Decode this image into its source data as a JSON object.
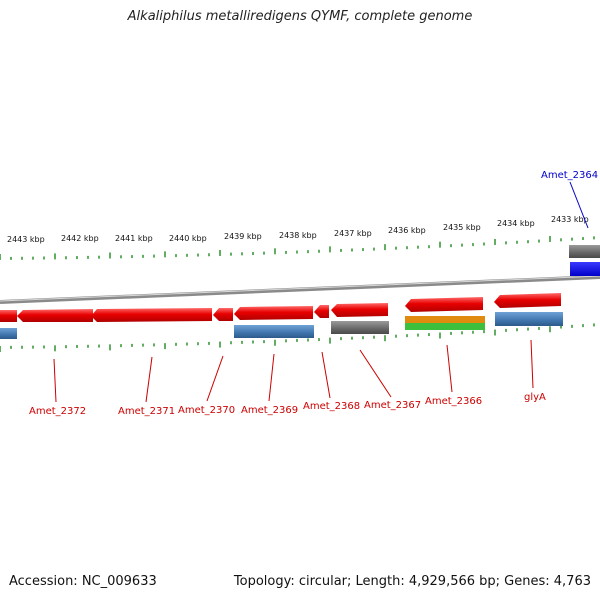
{
  "title": "Alkaliphilus metalliredigens QYMF, complete genome",
  "footer": {
    "accession": "Accession: NC_009633",
    "summary": "Topology: circular; Length: 4,929,566 bp; Genes: 4,763"
  },
  "scale_labels": [
    "2443 kbp",
    "2442 kbp",
    "2441 kbp",
    "2440 kbp",
    "2439 kbp",
    "2438 kbp",
    "2437 kbp",
    "2436 kbp",
    "2435 kbp",
    "2434 kbp",
    "2433 kbp"
  ],
  "gene_labels": [
    {
      "text": "Amet_2372",
      "color": "#cc0000"
    },
    {
      "text": "Amet_2371",
      "color": "#cc0000"
    },
    {
      "text": "Amet_2370",
      "color": "#cc0000"
    },
    {
      "text": "Amet_2369",
      "color": "#cc0000"
    },
    {
      "text": "Amet_2368",
      "color": "#cc0000"
    },
    {
      "text": "Amet_2367",
      "color": "#cc0000"
    },
    {
      "text": "Amet_2366",
      "color": "#cc0000"
    },
    {
      "text": "glyA",
      "color": "#cc0000"
    },
    {
      "text": "Amet_2364",
      "color": "#0000cc"
    }
  ],
  "colors": {
    "cds": "#e50000",
    "cog_blue": "#4a7fb5",
    "cog_gray": "#6d6d6d",
    "cog_orange": "#e08a10",
    "cog_green": "#3cbf3c",
    "strong_blue": "#0000ee",
    "ticks": "#1e8a1e",
    "backbone": "#8a8a8a"
  }
}
